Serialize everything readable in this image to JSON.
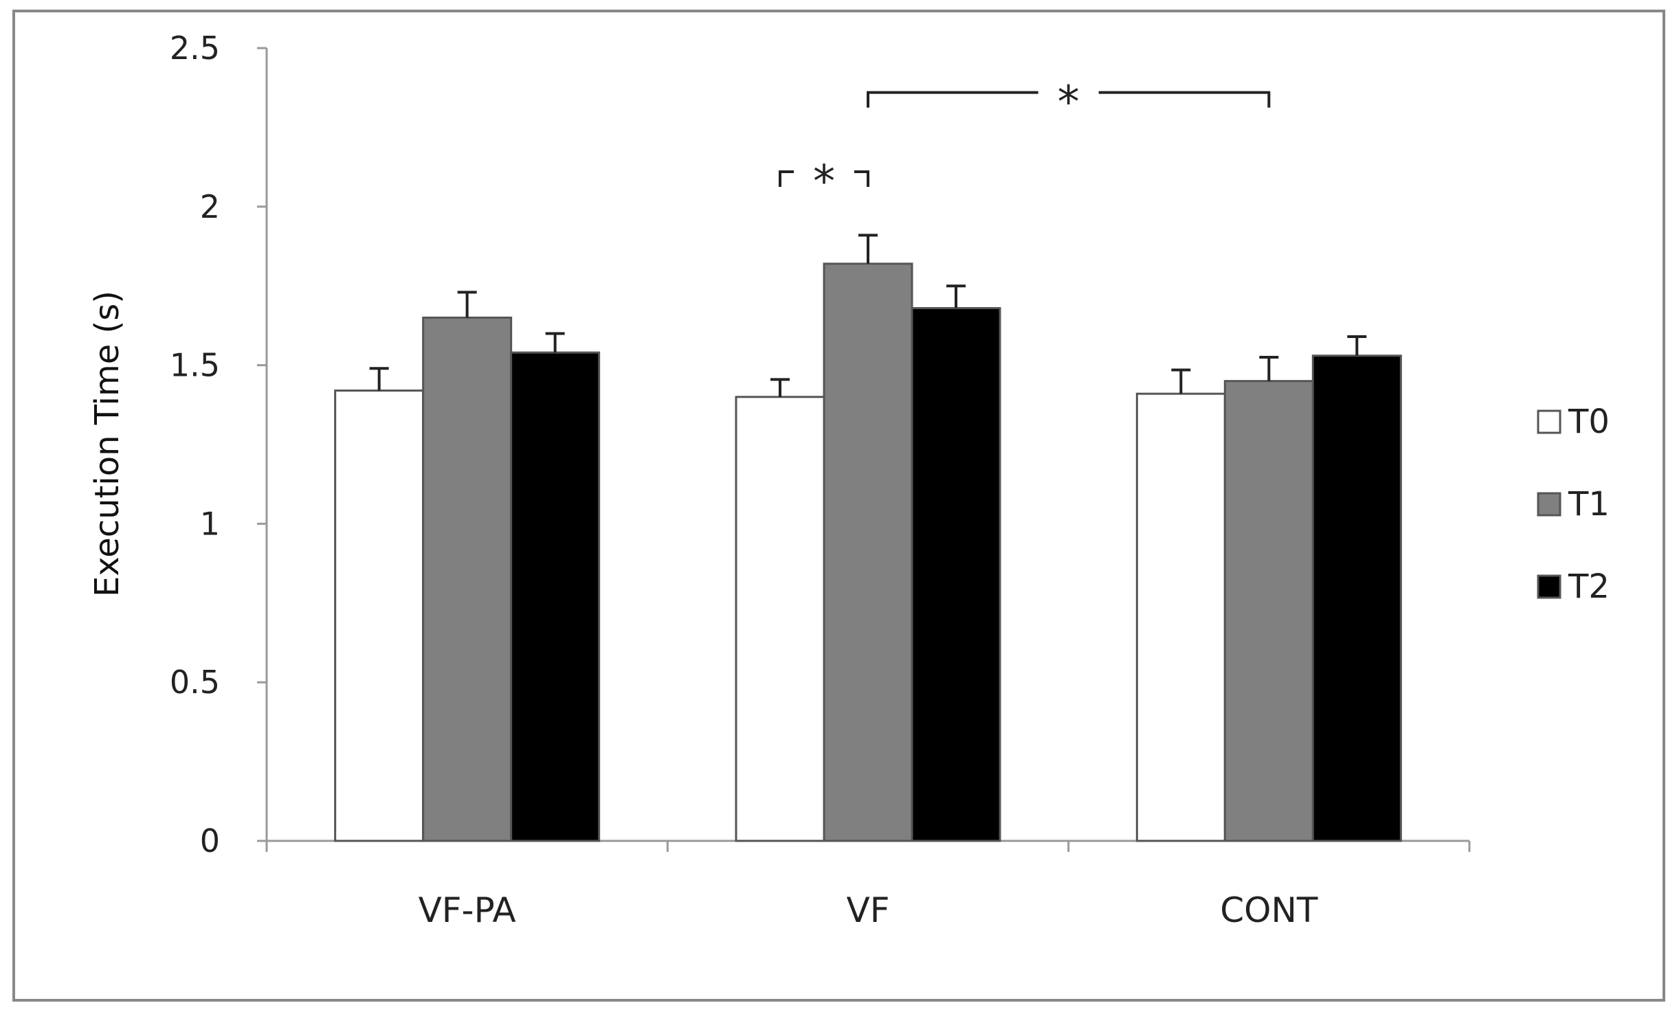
{
  "chart_data": {
    "type": "bar",
    "title": "",
    "xlabel": "",
    "ylabel": "Execution Time (s)",
    "ylim": [
      0,
      2.5
    ],
    "yticks": [
      "0",
      "0.5",
      "1",
      "1.5",
      "2",
      "2.5"
    ],
    "categories": [
      "VF-PA",
      "VF",
      "CONT"
    ],
    "series": [
      {
        "name": "T0",
        "values": [
          1.42,
          1.4,
          1.41
        ],
        "errors": [
          0.07,
          0.055,
          0.075
        ],
        "color": "#ffffff"
      },
      {
        "name": "T1",
        "values": [
          1.65,
          1.82,
          1.45
        ],
        "errors": [
          0.08,
          0.09,
          0.075
        ],
        "color": "#808080"
      },
      {
        "name": "T2",
        "values": [
          1.54,
          1.68,
          1.53
        ],
        "errors": [
          0.06,
          0.07,
          0.06
        ],
        "color": "#000000"
      }
    ],
    "legend_position": "right",
    "grid": false,
    "annotations": [
      {
        "label": "*",
        "from": {
          "category": "VF",
          "series": "T0"
        },
        "to": {
          "category": "VF",
          "series": "T1"
        },
        "level": 2.11
      },
      {
        "label": "*",
        "from": {
          "category": "VF",
          "series": "T1"
        },
        "to": {
          "category": "CONT",
          "series": "T1"
        },
        "level": 2.36
      }
    ]
  }
}
